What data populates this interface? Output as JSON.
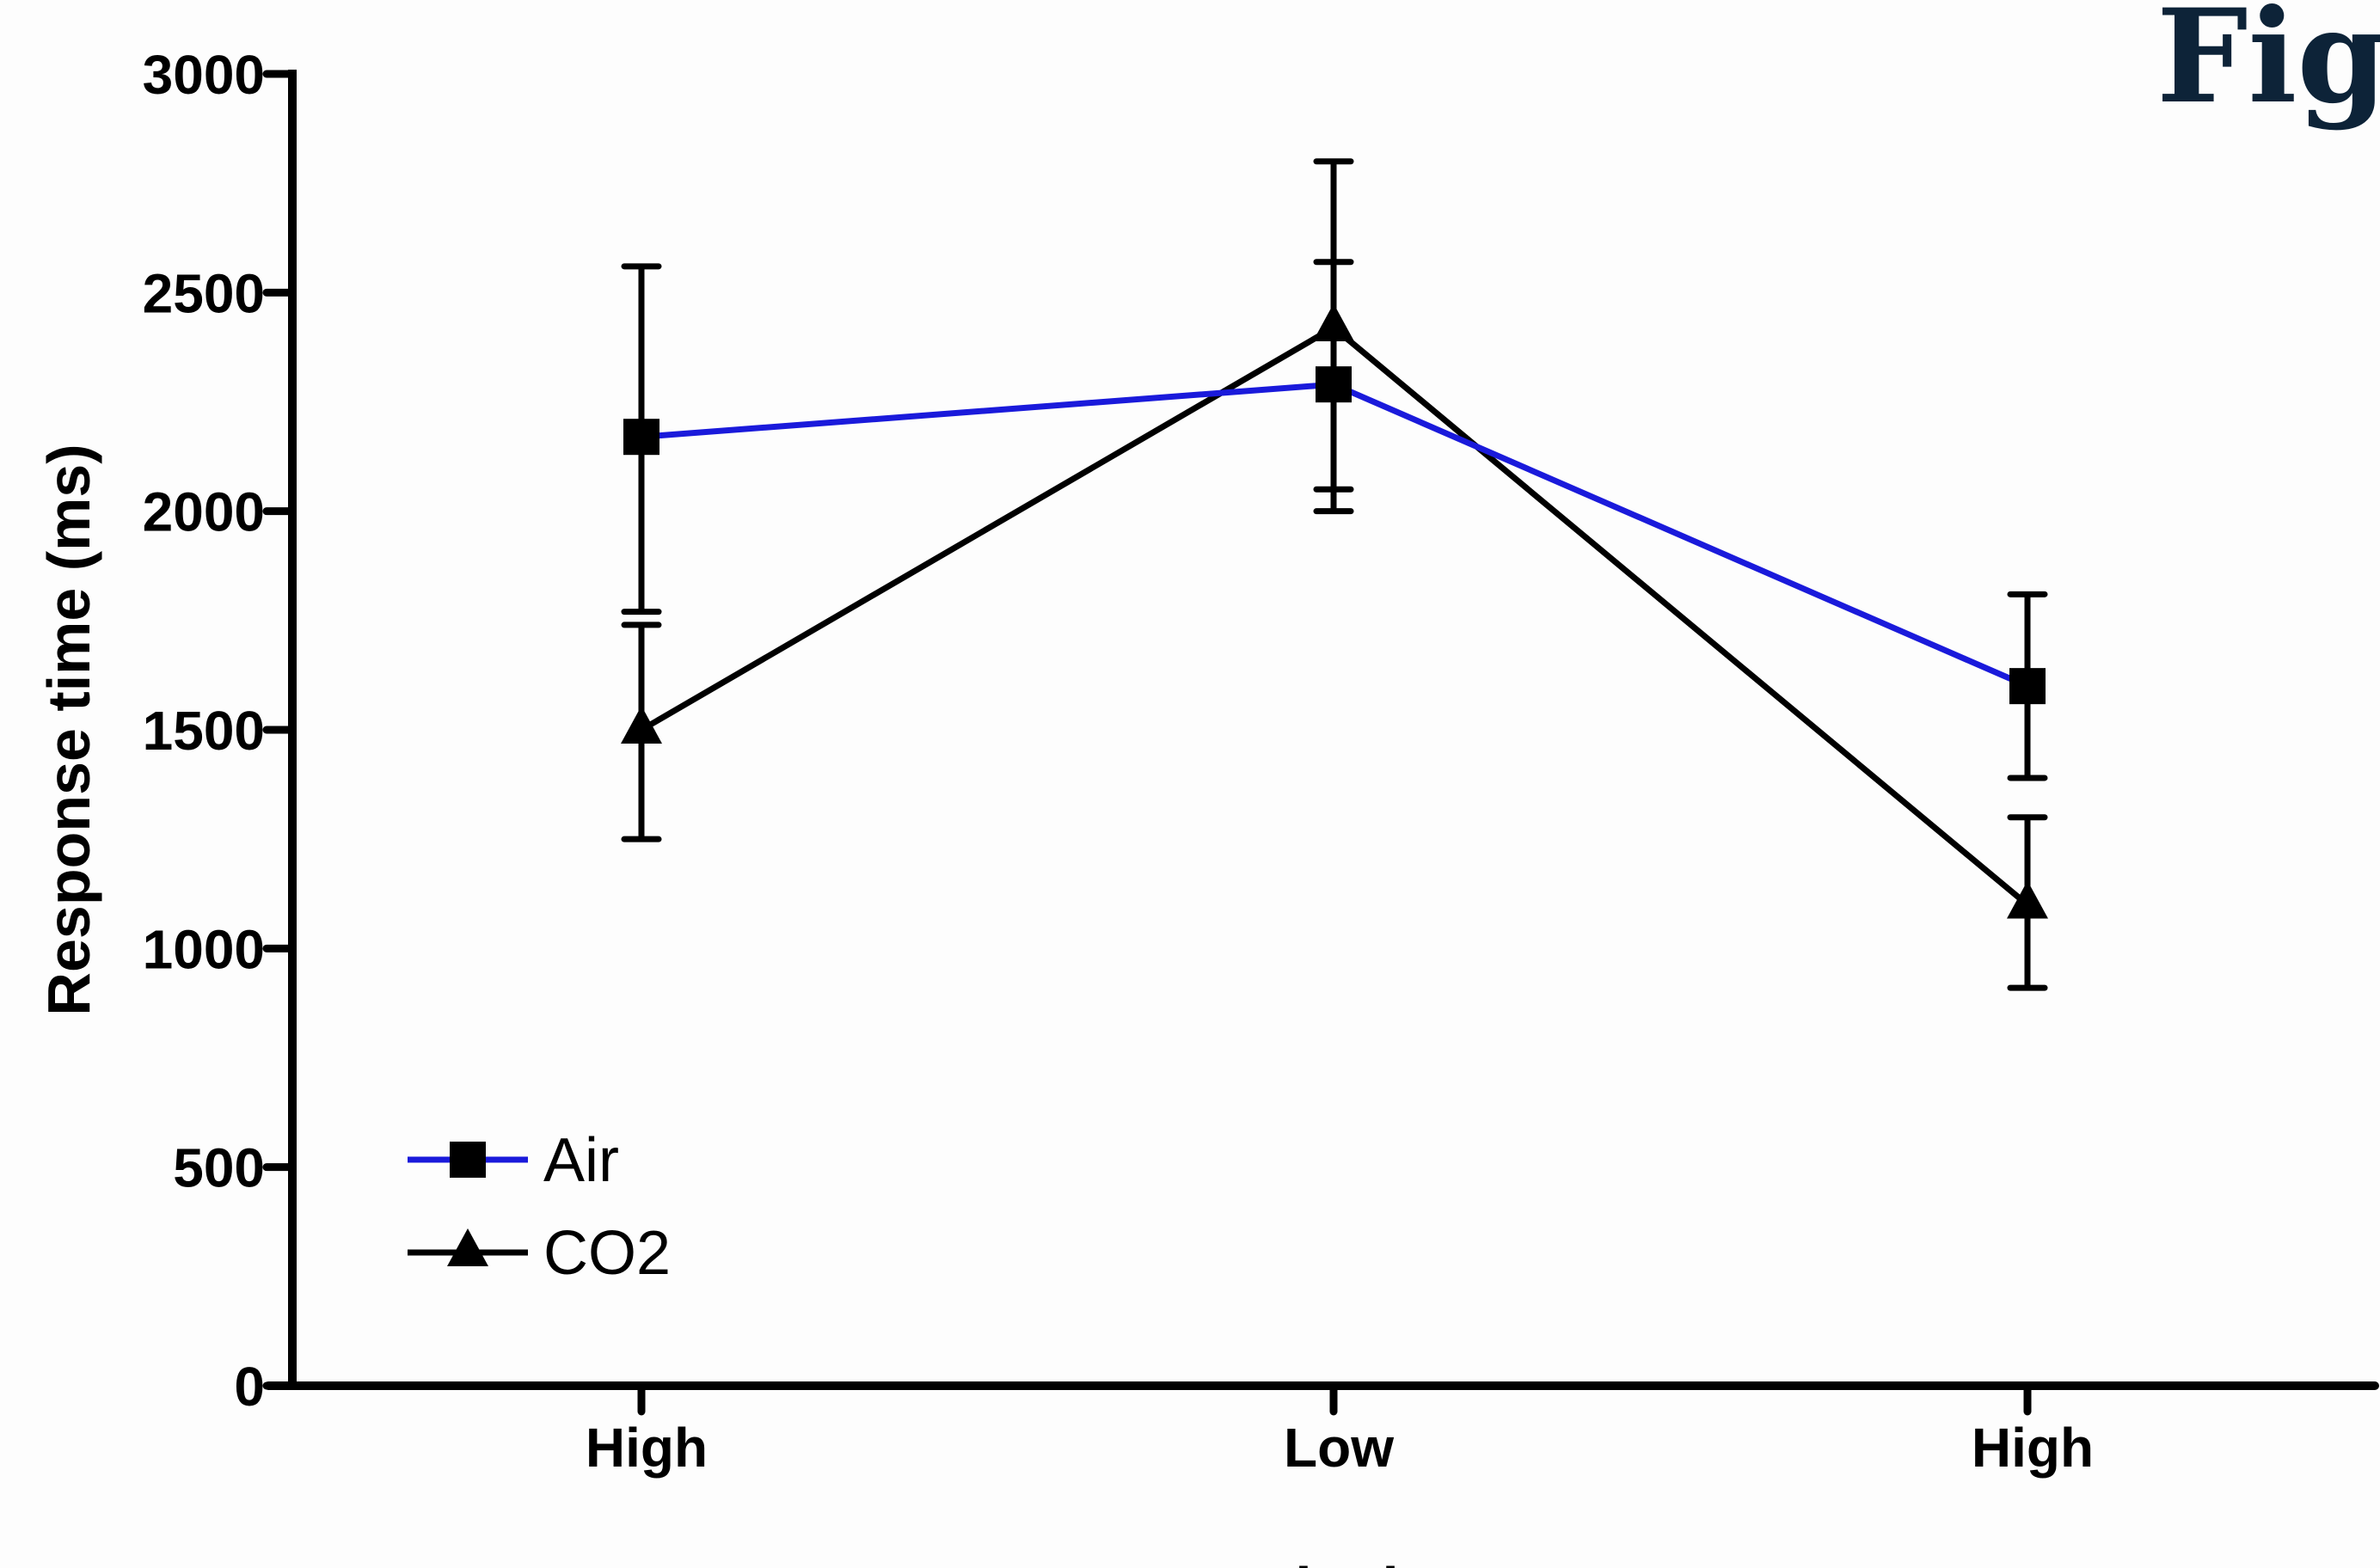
{
  "figure_label": "Figu",
  "chart_data": {
    "type": "line",
    "title": "",
    "xlabel": "Block",
    "ylabel": "Response time (ms)",
    "categories": [
      "High",
      "Low",
      "High"
    ],
    "ylim": [
      0,
      3000
    ],
    "yticks": [
      0,
      500,
      1000,
      1500,
      2000,
      2500,
      3000
    ],
    "grid": false,
    "legend_position": "bottom-left",
    "series": [
      {
        "name": "Air",
        "color": "#1a1adb",
        "marker": "square",
        "values": [
          2170,
          2290,
          1600
        ],
        "error_low": [
          1770,
          2050,
          1390
        ],
        "error_high": [
          2560,
          2570,
          1810
        ]
      },
      {
        "name": "CO2",
        "color": "#000000",
        "marker": "triangle",
        "values": [
          1500,
          2420,
          1100
        ],
        "error_low": [
          1250,
          2000,
          910
        ],
        "error_high": [
          1740,
          2800,
          1300
        ]
      }
    ]
  }
}
